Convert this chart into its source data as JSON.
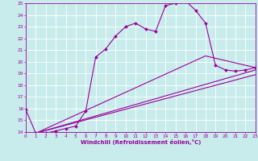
{
  "xlabel": "Windchill (Refroidissement éolien,°C)",
  "xlim": [
    0,
    23
  ],
  "ylim": [
    14,
    25
  ],
  "xticks": [
    0,
    1,
    2,
    3,
    4,
    5,
    6,
    7,
    8,
    9,
    10,
    11,
    12,
    13,
    14,
    15,
    16,
    17,
    18,
    19,
    20,
    21,
    22,
    23
  ],
  "yticks": [
    14,
    15,
    16,
    17,
    18,
    19,
    20,
    21,
    22,
    23,
    24,
    25
  ],
  "bg_color": "#c8ecec",
  "grid_color": "#ffffff",
  "line_color": "#990099",
  "line1_x": [
    0,
    1,
    2,
    3,
    4,
    5,
    6,
    7,
    8,
    9,
    10,
    11,
    12,
    13,
    14,
    15,
    16,
    17,
    18,
    19,
    20,
    21,
    22,
    23
  ],
  "line1_y": [
    15.9,
    13.9,
    13.9,
    14.1,
    14.3,
    14.5,
    15.8,
    20.4,
    21.1,
    22.2,
    23.0,
    23.3,
    22.8,
    22.6,
    24.8,
    25.0,
    25.2,
    24.4,
    23.3,
    19.7,
    19.3,
    19.2,
    19.3,
    19.5
  ],
  "line2_x": [
    1,
    23
  ],
  "line2_y": [
    13.9,
    18.9
  ],
  "line3_x": [
    1,
    23
  ],
  "line3_y": [
    13.9,
    19.3
  ],
  "line4_x": [
    1,
    18,
    23
  ],
  "line4_y": [
    13.9,
    20.5,
    19.5
  ]
}
